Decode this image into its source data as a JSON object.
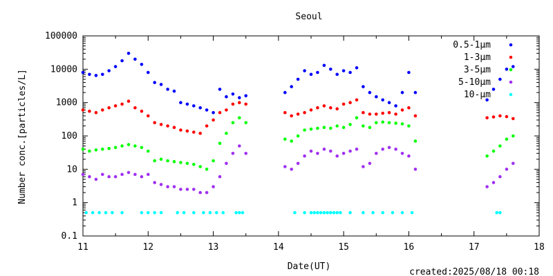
{
  "chart_data": {
    "type": "scatter",
    "title": "Seoul",
    "xlabel": "Date(UT)",
    "ylabel": "Number conc.[particles/L]",
    "footer": "created:2025/08/18 00:18",
    "xlim": [
      11,
      18
    ],
    "ylim": [
      0.1,
      100000
    ],
    "yscale": "log",
    "grid": false,
    "legend_position": "top-right",
    "x_ticks": [
      11,
      12,
      13,
      14,
      15,
      16,
      17,
      18
    ],
    "x_tick_labels": [
      "11",
      "12",
      "13",
      "14",
      "15",
      "16",
      "17",
      "18"
    ],
    "y_ticks": [
      0.1,
      1,
      10,
      100,
      1000,
      10000,
      100000
    ],
    "y_tick_labels": [
      "0.1",
      "1",
      "10",
      "100",
      "1000",
      "10000",
      "100000"
    ],
    "series": [
      {
        "name": "0.5-1μm",
        "color": "#0000ff",
        "x": [
          11.0,
          11.1,
          11.2,
          11.3,
          11.4,
          11.5,
          11.6,
          11.7,
          11.8,
          11.9,
          12.0,
          12.1,
          12.2,
          12.3,
          12.4,
          12.5,
          12.6,
          12.7,
          12.8,
          12.9,
          13.0,
          13.1,
          13.2,
          13.3,
          13.4,
          13.5,
          14.1,
          14.2,
          14.3,
          14.4,
          14.5,
          14.6,
          14.7,
          14.8,
          14.9,
          15.0,
          15.1,
          15.2,
          15.3,
          15.4,
          15.5,
          15.6,
          15.7,
          15.8,
          15.9,
          16.0,
          16.1,
          17.2,
          17.3,
          17.4,
          17.5,
          17.6
        ],
        "y": [
          8000,
          7000,
          6500,
          7000,
          9000,
          12000,
          18000,
          30000,
          20000,
          14000,
          8000,
          4000,
          3500,
          2500,
          2200,
          1000,
          900,
          800,
          700,
          600,
          500,
          2500,
          1500,
          1800,
          1400,
          1600,
          2000,
          3000,
          5000,
          9000,
          7000,
          8000,
          13000,
          10000,
          7000,
          9000,
          8000,
          11000,
          3000,
          2000,
          1500,
          1200,
          1000,
          800,
          2000,
          8000,
          2000,
          1200,
          2500,
          5000,
          10000,
          12000
        ]
      },
      {
        "name": "1-3μm",
        "color": "#ff0000",
        "x": [
          11.0,
          11.1,
          11.2,
          11.3,
          11.4,
          11.5,
          11.6,
          11.7,
          11.8,
          11.9,
          12.0,
          12.1,
          12.2,
          12.3,
          12.4,
          12.5,
          12.6,
          12.7,
          12.8,
          12.9,
          13.0,
          13.1,
          13.2,
          13.3,
          13.4,
          13.5,
          14.1,
          14.2,
          14.3,
          14.4,
          14.5,
          14.6,
          14.7,
          14.8,
          14.9,
          15.0,
          15.1,
          15.2,
          15.3,
          15.4,
          15.5,
          15.6,
          15.7,
          15.8,
          15.9,
          16.0,
          16.1,
          17.2,
          17.3,
          17.4,
          17.5,
          17.6
        ],
        "y": [
          600,
          550,
          500,
          600,
          700,
          800,
          900,
          1100,
          700,
          550,
          400,
          250,
          220,
          200,
          180,
          150,
          140,
          130,
          120,
          200,
          300,
          500,
          600,
          900,
          1000,
          900,
          500,
          400,
          450,
          500,
          600,
          700,
          800,
          700,
          650,
          900,
          1000,
          1200,
          500,
          450,
          450,
          480,
          500,
          450,
          600,
          700,
          400,
          350,
          370,
          400,
          380,
          330
        ]
      },
      {
        "name": "3-5μm",
        "color": "#00ff00",
        "x": [
          11.0,
          11.1,
          11.2,
          11.3,
          11.4,
          11.5,
          11.6,
          11.7,
          11.8,
          11.9,
          12.0,
          12.1,
          12.2,
          12.3,
          12.4,
          12.5,
          12.6,
          12.7,
          12.8,
          12.9,
          13.0,
          13.1,
          13.2,
          13.3,
          13.4,
          13.5,
          14.1,
          14.2,
          14.3,
          14.4,
          14.5,
          14.6,
          14.7,
          14.8,
          14.9,
          15.0,
          15.1,
          15.2,
          15.3,
          15.4,
          15.5,
          15.6,
          15.7,
          15.8,
          15.9,
          16.0,
          16.1,
          17.2,
          17.3,
          17.4,
          17.5,
          17.6
        ],
        "y": [
          40,
          35,
          38,
          40,
          42,
          45,
          50,
          55,
          50,
          45,
          35,
          18,
          20,
          18,
          17,
          16,
          15,
          14,
          12,
          10,
          18,
          60,
          120,
          250,
          350,
          250,
          80,
          70,
          100,
          150,
          160,
          170,
          180,
          170,
          200,
          180,
          220,
          350,
          200,
          180,
          250,
          260,
          250,
          240,
          230,
          200,
          70,
          25,
          35,
          50,
          80,
          100
        ]
      },
      {
        "name": "5-10μm",
        "color": "#a030f0",
        "x": [
          11.0,
          11.1,
          11.2,
          11.3,
          11.4,
          11.5,
          11.6,
          11.7,
          11.8,
          11.9,
          12.0,
          12.1,
          12.2,
          12.3,
          12.4,
          12.5,
          12.6,
          12.7,
          12.8,
          12.9,
          13.0,
          13.1,
          13.2,
          13.3,
          13.4,
          13.5,
          14.1,
          14.2,
          14.3,
          14.4,
          14.5,
          14.6,
          14.7,
          14.8,
          14.9,
          15.0,
          15.1,
          15.2,
          15.3,
          15.4,
          15.5,
          15.6,
          15.7,
          15.8,
          15.9,
          16.0,
          16.1,
          17.2,
          17.3,
          17.4,
          17.5,
          17.6
        ],
        "y": [
          7,
          6,
          5,
          7,
          6,
          6,
          7,
          8,
          7,
          6,
          7,
          4,
          3.5,
          3,
          3,
          2.5,
          2.5,
          2.5,
          2,
          2,
          3,
          6,
          15,
          30,
          50,
          30,
          12,
          10,
          15,
          25,
          35,
          30,
          40,
          35,
          25,
          30,
          35,
          40,
          12,
          15,
          30,
          40,
          45,
          40,
          30,
          25,
          10,
          3,
          4,
          6,
          10,
          15
        ]
      },
      {
        "name": "10-μm",
        "color": "#00ffff",
        "x": [
          11.05,
          11.15,
          11.25,
          11.35,
          11.45,
          11.6,
          11.9,
          12.0,
          12.1,
          12.2,
          12.45,
          12.55,
          12.7,
          12.85,
          12.95,
          13.05,
          13.15,
          13.35,
          13.4,
          13.45,
          14.25,
          14.4,
          14.5,
          14.55,
          14.6,
          14.65,
          14.7,
          14.75,
          14.8,
          14.85,
          14.9,
          14.95,
          15.1,
          15.3,
          15.45,
          15.6,
          15.75,
          15.9,
          16.05,
          17.35,
          17.4
        ],
        "y": [
          0.5,
          0.5,
          0.5,
          0.5,
          0.5,
          0.5,
          0.5,
          0.5,
          0.5,
          0.5,
          0.5,
          0.5,
          0.5,
          0.5,
          0.5,
          0.5,
          0.5,
          0.5,
          0.5,
          0.5,
          0.5,
          0.5,
          0.5,
          0.5,
          0.5,
          0.5,
          0.5,
          0.5,
          0.5,
          0.5,
          0.5,
          0.5,
          0.5,
          0.5,
          0.5,
          0.5,
          0.5,
          0.5,
          0.5,
          0.5,
          0.5
        ]
      }
    ]
  }
}
